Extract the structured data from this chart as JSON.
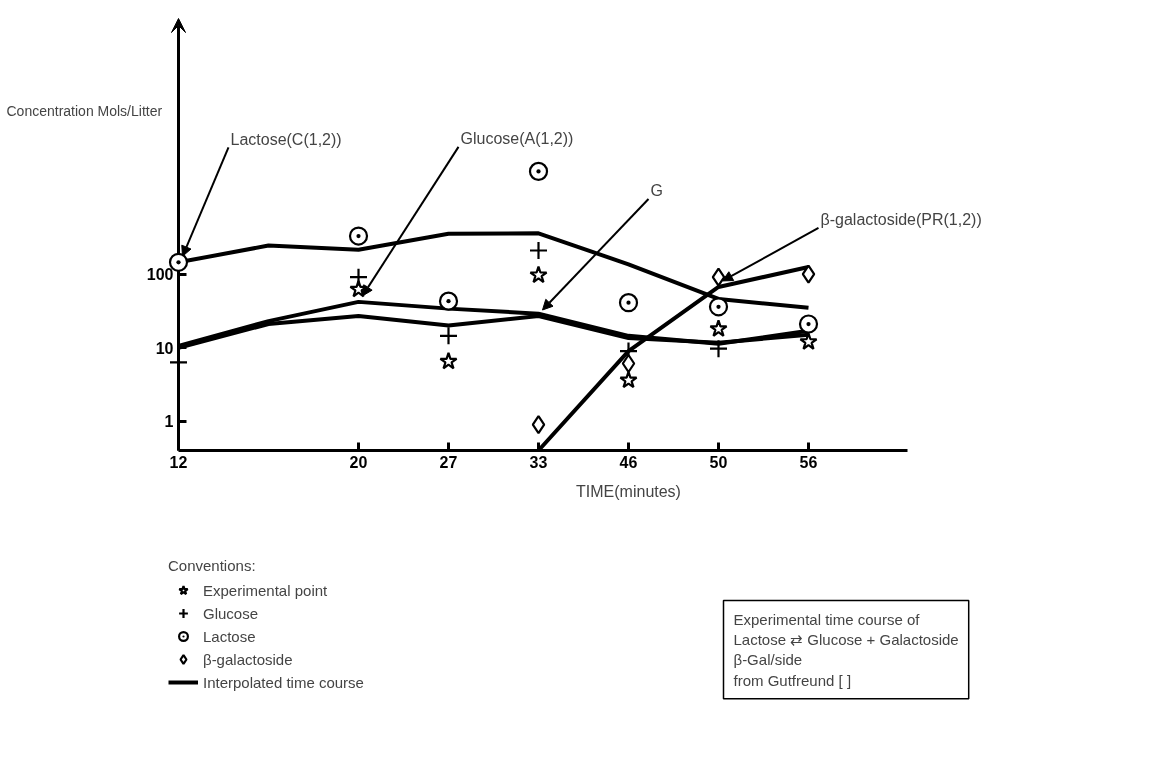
{
  "chart_data": {
    "type": "scatter",
    "xlabel": "TIME(minutes)",
    "ylabel": "Concentration Mols/Litter",
    "legend_title": "Conventions:",
    "categories": [
      "12",
      null,
      "20",
      "27",
      "33",
      "46",
      "50",
      "56"
    ],
    "log": "y",
    "ylim": [
      0.4,
      300000
    ],
    "yticks": [
      1,
      10,
      100
    ],
    "grid": false,
    "legend": "bottom left",
    "series": [
      {
        "name": "Experimental point",
        "marker": "star",
        "color": "#000000",
        "values": [
          null,
          null,
          62,
          6.5,
          97,
          3.6,
          18,
          12
        ]
      },
      {
        "name": "Glucose",
        "marker": "cross",
        "color": "#000000",
        "values": [
          6.3,
          null,
          91,
          14.5,
          210,
          9,
          9.7,
          null
        ]
      },
      {
        "name": "Lactose",
        "marker": "circle",
        "color": "#000000",
        "values": [
          145,
          null,
          330,
          43,
          2500,
          41,
          36,
          21
        ]
      },
      {
        "name": "β-galactoside",
        "marker": "diamond",
        "color": "#000000",
        "values": [
          null,
          null,
          null,
          null,
          0.9,
          6.1,
          91,
          100
        ]
      },
      {
        "name": "Lactose(C(1,2))",
        "type": "line",
        "color": "#000000",
        "values": [
          145,
          245,
          215,
          355,
          360,
          136,
          46,
          35
        ]
      },
      {
        "name": "Glucose(A(1,2))",
        "type": "line",
        "color": "#000000",
        "values": [
          10.6,
          23,
          42,
          34,
          29,
          14.5,
          11.3,
          17
        ]
      },
      {
        "name": "G",
        "type": "line",
        "color": "#000000",
        "values": [
          10,
          21,
          27,
          20,
          27,
          13.5,
          11.7,
          15
        ]
      },
      {
        "name": "β-galactoside(PR(1,2))",
        "type": "line",
        "color": "#000000",
        "values": [
          null,
          null,
          null,
          null,
          0.4,
          9,
          67,
          125
        ]
      }
    ],
    "annotations": [
      "Interpolated time course",
      "Experimental time course of",
      "Lactose ⇄ Glucose + Galactoside",
      "β-Gal/side",
      "from Gutfreund [ ]"
    ]
  }
}
